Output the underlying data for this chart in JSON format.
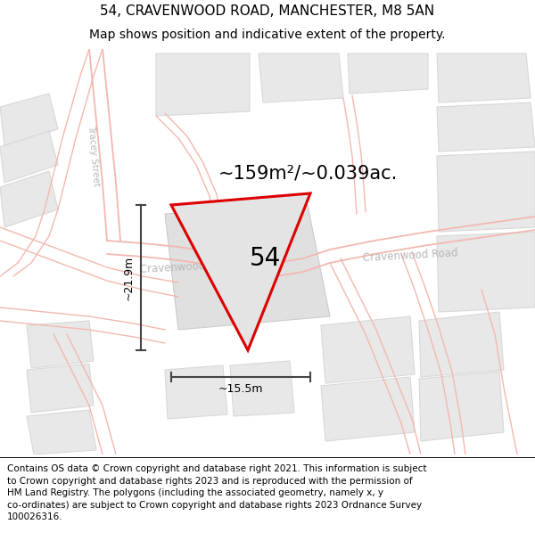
{
  "title_line1": "54, CRAVENWOOD ROAD, MANCHESTER, M8 5AN",
  "title_line2": "Map shows position and indicative extent of the property.",
  "footer_lines": [
    "Contains OS data © Crown copyright and database right 2021. This information is subject",
    "to Crown copyright and database rights 2023 and is reproduced with the permission of",
    "HM Land Registry. The polygons (including the associated geometry, namely x, y",
    "co-ordinates) are subject to Crown copyright and database rights 2023 Ordnance Survey",
    "100026316."
  ],
  "area_label": "~159m²/~0.039ac.",
  "dim_vertical": "~21.9m",
  "dim_horizontal": "~15.5m",
  "property_number": "54",
  "map_bg": "#ffffff",
  "property_fill": "#e4e4e4",
  "property_edge": "#dd0000",
  "road_color": "#f2b8b0",
  "building_fill": "#e8e8e8",
  "building_edge": "#d8d8d8",
  "dim_color": "#444444",
  "street_text_color": "#b8b8b8",
  "title_fontsize": 11,
  "subtitle_fontsize": 10,
  "footer_fontsize": 7.5,
  "area_fontsize": 15,
  "number_fontsize": 20
}
